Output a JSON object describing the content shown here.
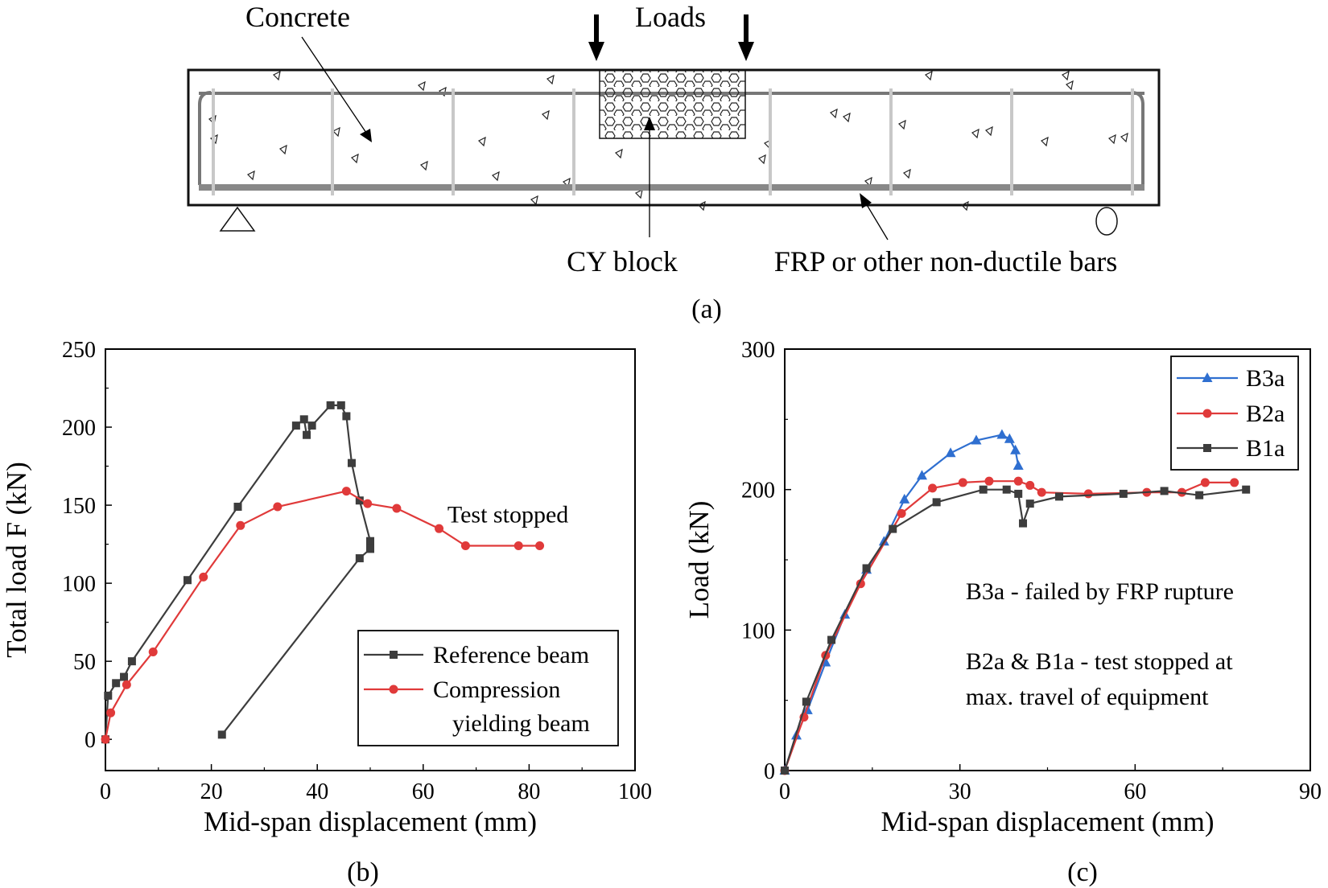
{
  "panel_a": {
    "labels": {
      "concrete": "Concrete",
      "loads": "Loads",
      "cy_block": "CY block",
      "frp": "FRP or other non-ductile bars"
    },
    "caption": "(a)"
  },
  "chart_data": [
    {
      "id": "b",
      "type": "line",
      "caption": "(b)",
      "xlabel": "Mid-span displacement (mm)",
      "ylabel": "Total load F (kN)",
      "xlim": [
        0,
        100
      ],
      "ylim": [
        -20,
        250
      ],
      "xticks": [
        0,
        20,
        40,
        60,
        80,
        100
      ],
      "yticks": [
        0,
        50,
        100,
        150,
        200,
        250
      ],
      "grid": false,
      "legend_position": "bottom-right",
      "annotations": [
        {
          "text": "Test stopped",
          "x": 76,
          "y": 139
        }
      ],
      "series": [
        {
          "name": "Reference beam",
          "legend_line1": "Reference beam",
          "legend_line2": "",
          "color": "#3d3d3d",
          "marker": "square",
          "points": [
            [
              0,
              0
            ],
            [
              0.5,
              28
            ],
            [
              2,
              36
            ],
            [
              3.5,
              40
            ],
            [
              5,
              50
            ],
            [
              15.5,
              102
            ],
            [
              25,
              149
            ],
            [
              36,
              201
            ],
            [
              37.5,
              205
            ],
            [
              38,
              195
            ],
            [
              39,
              201
            ],
            [
              42.5,
              214
            ],
            [
              44.5,
              214
            ],
            [
              45.5,
              207
            ],
            [
              46.5,
              177
            ],
            [
              48,
              153
            ],
            [
              50,
              127
            ],
            [
              50,
              122
            ],
            [
              48,
              116
            ],
            [
              22,
              3
            ]
          ]
        },
        {
          "name": "Compression yielding beam",
          "legend_line1": "Compression",
          "legend_line2": "yielding beam",
          "color": "#e03a3a",
          "marker": "circle",
          "points": [
            [
              0,
              0
            ],
            [
              1,
              17
            ],
            [
              4,
              35
            ],
            [
              9,
              56
            ],
            [
              18.5,
              104
            ],
            [
              25.5,
              137
            ],
            [
              32.5,
              149
            ],
            [
              45.5,
              159
            ],
            [
              49.5,
              151
            ],
            [
              55,
              148
            ],
            [
              63,
              135
            ],
            [
              68,
              124
            ],
            [
              78,
              124
            ],
            [
              82,
              124
            ]
          ]
        }
      ]
    },
    {
      "id": "c",
      "type": "line",
      "caption": "(c)",
      "xlabel": "Mid-span displacement (mm)",
      "ylabel": "Load (kN)",
      "xlim": [
        0,
        90
      ],
      "ylim": [
        0,
        300
      ],
      "xticks": [
        0,
        30,
        60,
        90
      ],
      "yticks": [
        0,
        100,
        200,
        300
      ],
      "grid": false,
      "legend_position": "top-right",
      "annotations": [
        {
          "text": "B3a - failed by FRP rupture",
          "x": 31,
          "y": 122
        },
        {
          "text": "B2a & B1a - test stopped at",
          "x": 31,
          "y": 72
        },
        {
          "text": "max. travel of equipment",
          "x": 31,
          "y": 47
        }
      ],
      "series": [
        {
          "name": "B3a",
          "color": "#2f6fd0",
          "marker": "triangle",
          "points": [
            [
              0,
              0
            ],
            [
              2,
              25
            ],
            [
              3.9,
              43
            ],
            [
              7,
              77
            ],
            [
              10.3,
              111
            ],
            [
              14,
              143
            ],
            [
              17,
              163
            ],
            [
              20.5,
              193
            ],
            [
              23.5,
              210
            ],
            [
              28.4,
              226
            ],
            [
              32.8,
              235
            ],
            [
              37.2,
              239
            ],
            [
              38.5,
              236
            ],
            [
              39.5,
              228
            ],
            [
              40,
              217
            ]
          ]
        },
        {
          "name": "B2a",
          "color": "#e03a3a",
          "marker": "circle",
          "points": [
            [
              0,
              0
            ],
            [
              3.3,
              38
            ],
            [
              7,
              82
            ],
            [
              13,
              133
            ],
            [
              20,
              183
            ],
            [
              25.3,
              201
            ],
            [
              30.5,
              205
            ],
            [
              35,
              206
            ],
            [
              40,
              206
            ],
            [
              42,
              203
            ],
            [
              44,
              198
            ],
            [
              52,
              197
            ],
            [
              62,
              198
            ],
            [
              68,
              198
            ],
            [
              72,
              205
            ],
            [
              77,
              205
            ]
          ]
        },
        {
          "name": "B1a",
          "color": "#3d3d3d",
          "marker": "square",
          "points": [
            [
              0,
              0
            ],
            [
              3.7,
              49
            ],
            [
              8,
              93
            ],
            [
              14,
              144
            ],
            [
              18.5,
              172
            ],
            [
              26,
              191
            ],
            [
              34,
              200
            ],
            [
              38,
              200
            ],
            [
              40,
              197
            ],
            [
              40.8,
              176
            ],
            [
              42,
              190
            ],
            [
              47,
              195
            ],
            [
              58,
              197
            ],
            [
              65,
              199
            ],
            [
              71,
              196
            ],
            [
              79,
              200
            ]
          ]
        }
      ]
    }
  ]
}
